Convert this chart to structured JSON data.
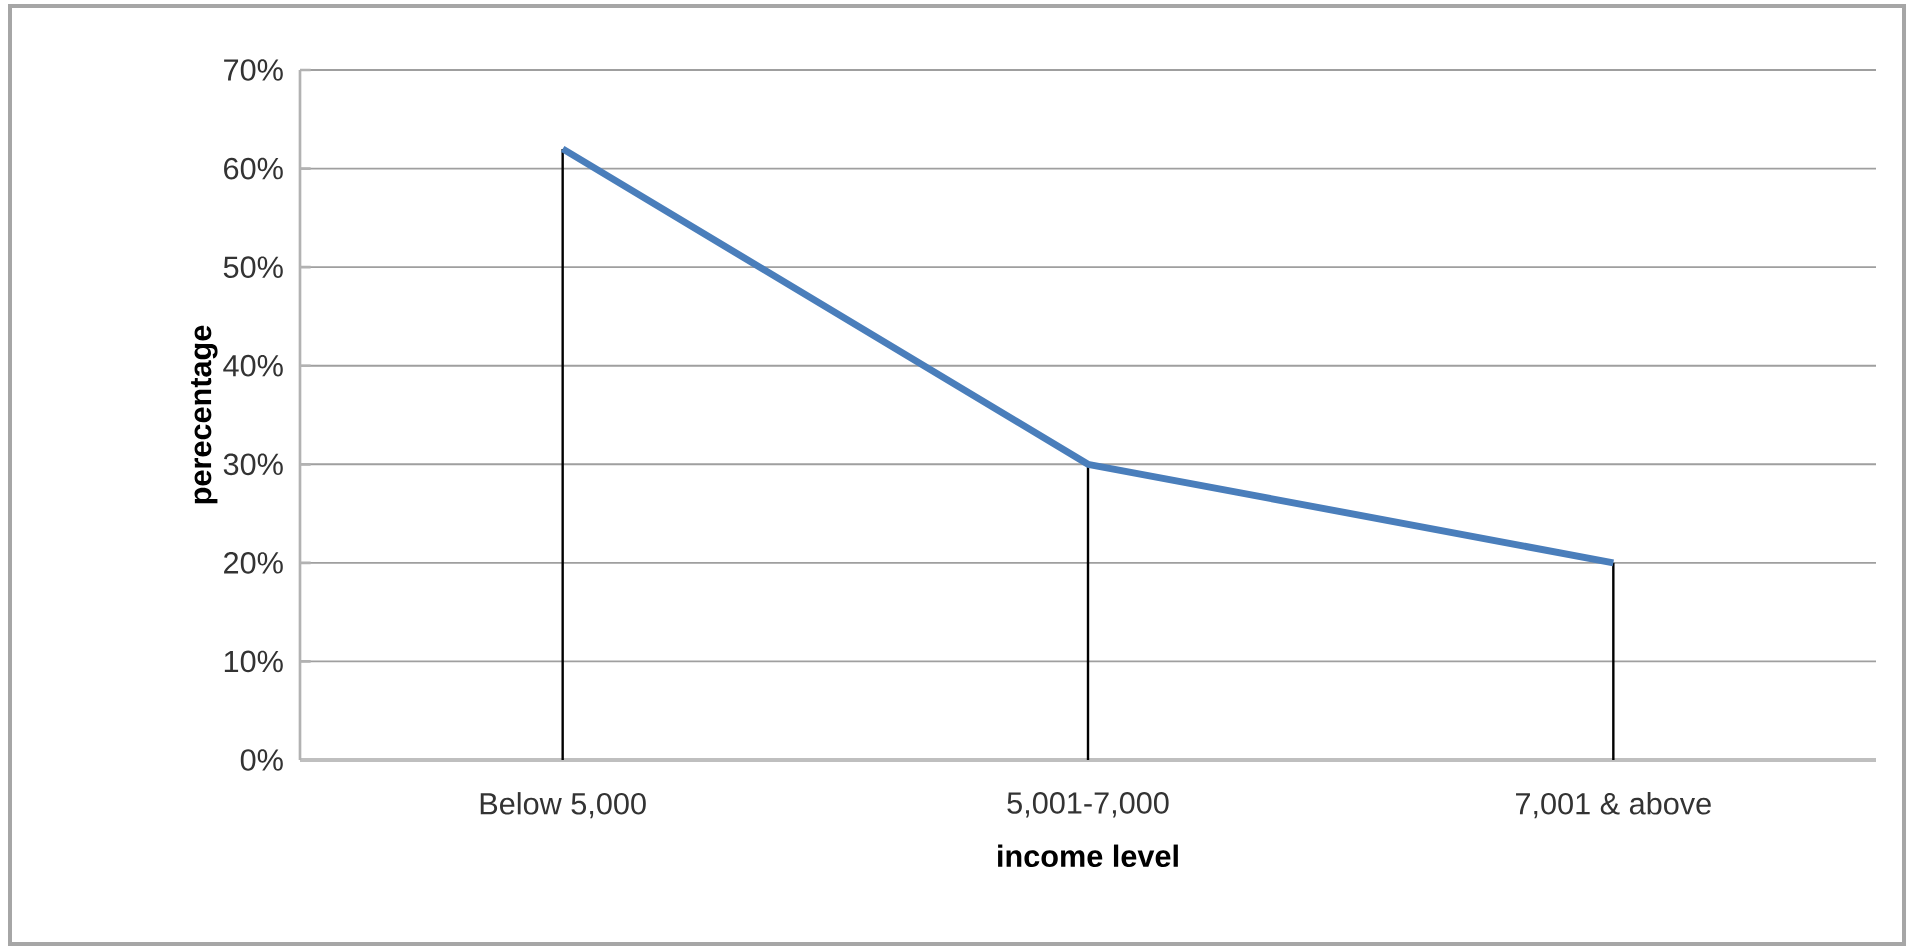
{
  "chart_data": {
    "type": "line",
    "xlabel": "income level",
    "ylabel": "perecentage",
    "categories": [
      "Below 5,000",
      "5,001-7,000",
      "7,001 & above"
    ],
    "series": [
      {
        "type": "bar",
        "color": "#000000",
        "values": [
          62,
          30,
          20
        ]
      },
      {
        "color": "#4a7ebb",
        "values": [
          62,
          30,
          20
        ]
      }
    ],
    "ylim": [
      0,
      70
    ],
    "yticks": [
      {
        "value": 0,
        "label": "0%"
      },
      {
        "value": 10,
        "label": "10%"
      },
      {
        "value": 20,
        "label": "20%"
      },
      {
        "value": 30,
        "label": "30%"
      },
      {
        "value": 40,
        "label": "40%"
      },
      {
        "value": 50,
        "label": "50%"
      },
      {
        "value": 60,
        "label": "60%"
      },
      {
        "value": 70,
        "label": "70%"
      }
    ],
    "grid": "y",
    "marker": "none",
    "line_style": "solid"
  }
}
